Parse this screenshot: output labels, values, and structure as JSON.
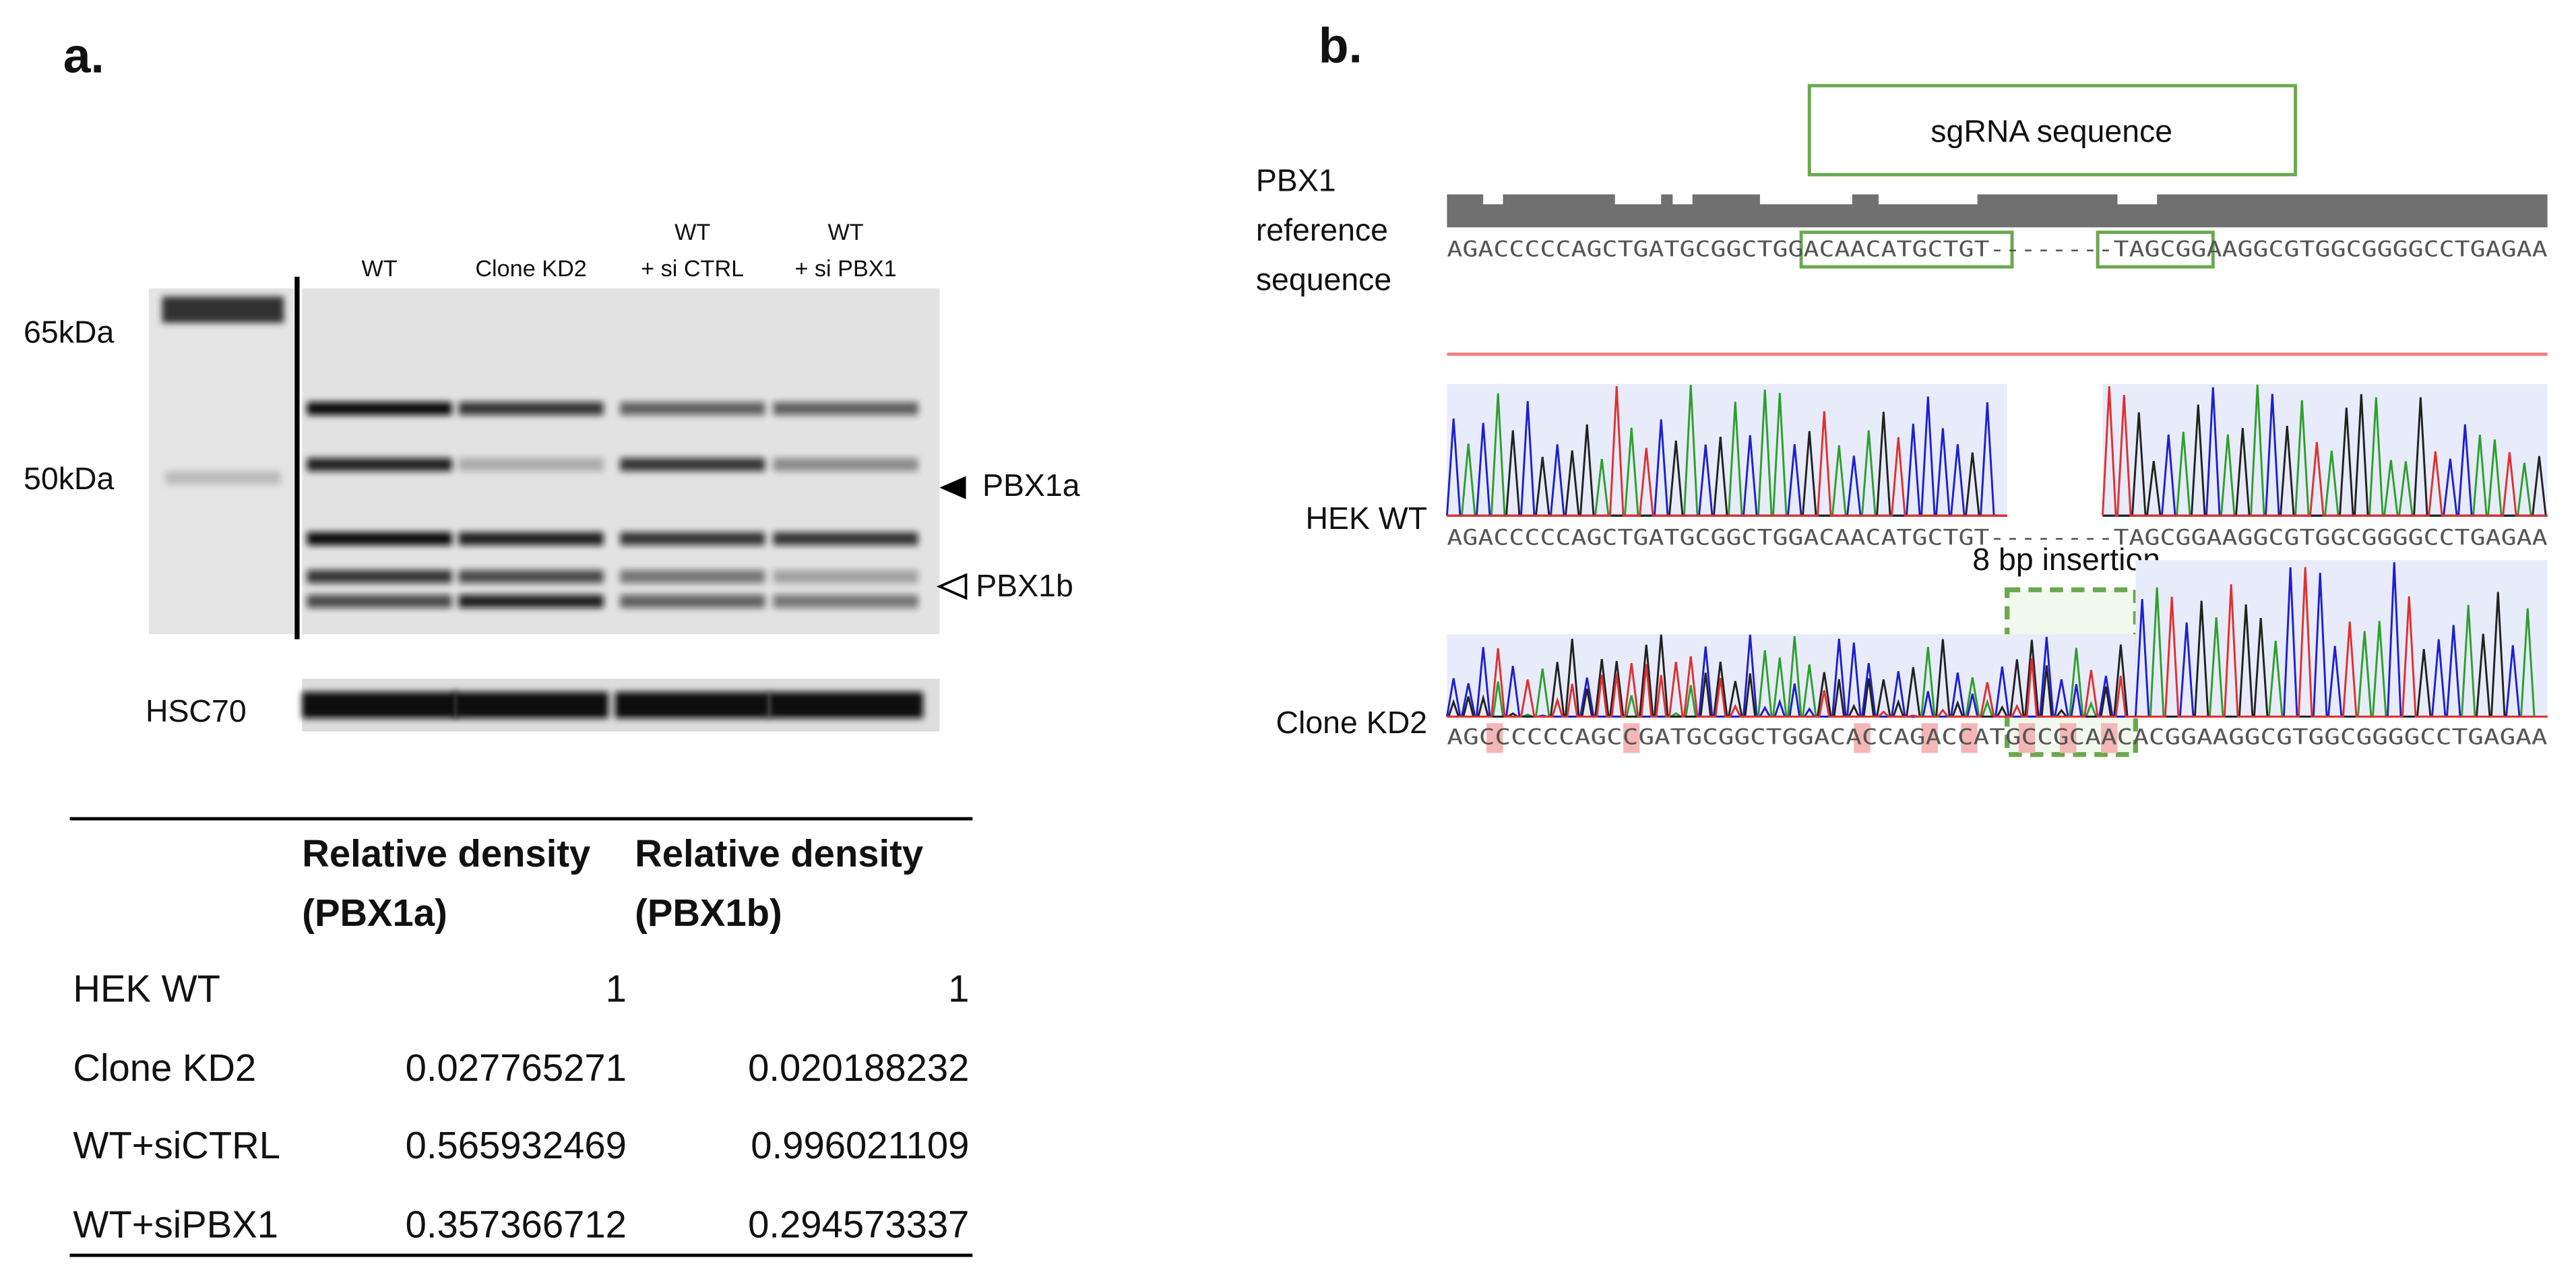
{
  "panel_a": {
    "label": "a.",
    "markers": [
      "65kDa",
      "50kDa"
    ],
    "lanes": [
      [
        "WT"
      ],
      [
        "Clone KD2"
      ],
      [
        "WT",
        "+ si CTRL"
      ],
      [
        "WT",
        "+ si PBX1"
      ]
    ],
    "bands": [
      "PBX1a",
      "PBX1b"
    ],
    "loading_control": "HSC70",
    "table": {
      "headers": [
        [
          "Relative density",
          "(PBX1a)"
        ],
        [
          "Relative density",
          "(PBX1b)"
        ]
      ],
      "rows": [
        [
          "HEK WT",
          "1",
          "1"
        ],
        [
          "Clone KD2",
          "0.027765271",
          "0.020188232"
        ],
        [
          "WT+siCTRL",
          "0.565932469",
          "0.996021109"
        ],
        [
          "WT+siPBX1",
          "0.357366712",
          "0.294573337"
        ]
      ]
    }
  },
  "panel_b": {
    "label": "b.",
    "sgrna": "sgRNA sequence",
    "reference_label": [
      "PBX1",
      "reference",
      "sequence"
    ],
    "reference_sequence": "AGACCCCCAGCTGATGCGGCTGGACAACATGCTGT--------TAGCGGAAGGCGTGGCGGGGCCTGAGAA",
    "wt_label": "HEK WT",
    "wt_sequence": "AGACCCCCAGCTGATGCGGCTGGACAACATGCTGT--------TAGCGGAAGGCGTGGCGGGGCCTGAGAA",
    "insertion": "8 bp insertion",
    "kd2_label": "Clone KD2",
    "kd2_sequence": "AGCCCCCCAGCCGATGCGGCTGGACACCAGACCATGCCGCAACACGGAAGGCGTGGCGGGGCCTGAGAA"
  }
}
